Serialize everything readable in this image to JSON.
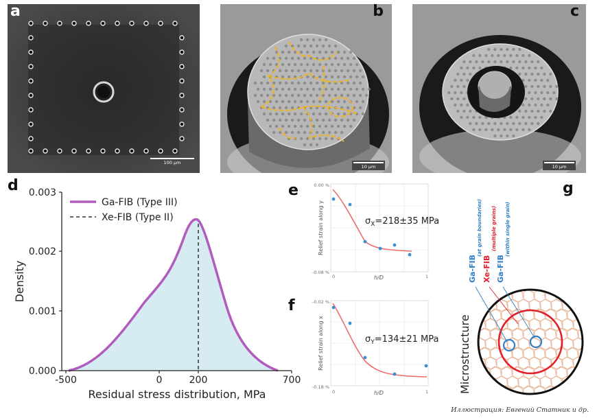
{
  "panel_labels": {
    "a": "a",
    "b": "b",
    "c": "c",
    "d": "d",
    "e": "e",
    "f": "f",
    "g": "g"
  },
  "panel_a": {
    "scale_label": "100 µm"
  },
  "panel_b": {
    "scale_label": "10 µm"
  },
  "panel_c": {
    "scale_label": "10 µm"
  },
  "panel_d": {
    "ylabel": "Density",
    "xlabel": "Residual stress distribution, MPa",
    "yticks": [
      "0.000",
      "0.001",
      "0.002",
      "0.003"
    ],
    "xticks": [
      "-500",
      "0",
      "200",
      "700"
    ],
    "legend": [
      {
        "label": "Ga-FIB (Type III)",
        "style": "solid",
        "color": "#b15bbd"
      },
      {
        "label": "Xe-FIB (Type II)",
        "style": "dashed",
        "color": "#333333"
      }
    ],
    "fill_color": "#d6ebf2",
    "curve_color": "#b15bbd"
  },
  "panel_e": {
    "ylabel": "Relief strain along y",
    "xlabel": "h/D",
    "ytick_top": "0.00 %",
    "ytick_bottom": "-0.08 %",
    "xtick_left": "0",
    "xtick_right": "1",
    "annotation_symbol": "σ",
    "annotation_sub": "X",
    "annotation_rest": "=218±35 MPa"
  },
  "panel_f": {
    "ylabel": "Relief strain along x",
    "xlabel": "h/D",
    "ytick_top": "-0.02 %",
    "ytick_bottom": "-0.18 %",
    "xtick_left": "0",
    "xtick_right": "1",
    "annotation_symbol": "σ",
    "annotation_sub": "Y",
    "annotation_rest": "=134±21 MPa"
  },
  "panel_g": {
    "title": "Microstructure",
    "labels": [
      {
        "main": "Ga-FIB",
        "sub": "(at grain boundaries)",
        "color": "#2f7fc6"
      },
      {
        "main": "Xe-FIB",
        "sub": "(multiple grains)",
        "color": "#e0202a"
      },
      {
        "main": "Ga-FIB",
        "sub": "(within single grain)",
        "color": "#2f7fc6"
      }
    ]
  },
  "credit": "Иллюстрация: Евгений Статник и др."
}
